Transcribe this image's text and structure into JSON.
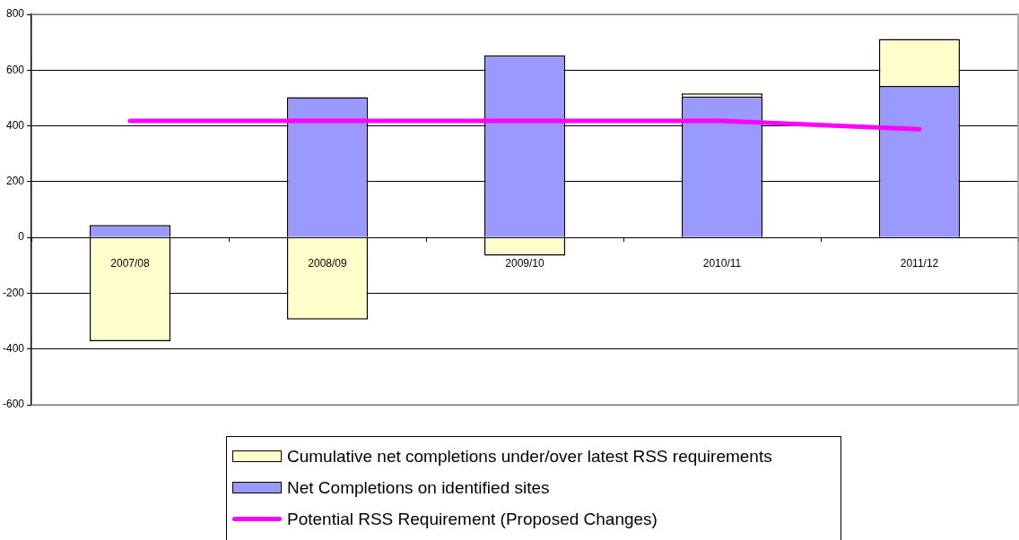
{
  "chart_data": {
    "type": "bar",
    "stacked": true,
    "categories": [
      "2007/08",
      "2008/09",
      "2009/10",
      "2010/11",
      "2011/12"
    ],
    "series": [
      {
        "name": "Net Completions on identified sites",
        "color": "#9999ff",
        "values": [
          45,
          503,
          653,
          505,
          543
        ]
      },
      {
        "name": "Cumulative net completions under/over latest RSS requirements",
        "color": "#ffffcc",
        "values": [
          -372,
          -294,
          -65,
          12,
          169
        ]
      },
      {
        "name": "Potential RSS Requirement (Proposed Changes)",
        "type": "line",
        "color": "#ff00ff",
        "values": [
          418,
          418,
          418,
          418,
          388
        ]
      }
    ],
    "ylim": [
      -600,
      800
    ],
    "yticks": [
      -600,
      -400,
      -200,
      0,
      200,
      400,
      600,
      800
    ],
    "grid": "y",
    "legend": "bottom",
    "marker": "none"
  }
}
